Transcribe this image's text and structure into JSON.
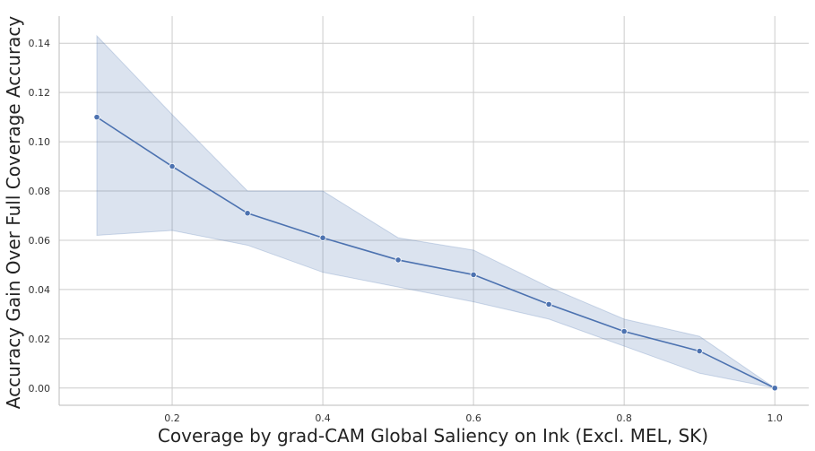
{
  "chart_data": {
    "type": "line",
    "xlabel": "Coverage by grad-CAM Global Saliency on Ink (Excl. MEL, SK)",
    "ylabel": "Accuracy Gain Over Full Coverage Accuracy",
    "xlim": [
      0.05,
      1.045
    ],
    "ylim": [
      -0.007,
      0.151
    ],
    "grid": true,
    "x_ticks": [
      0.2,
      0.4,
      0.6,
      0.8,
      1.0
    ],
    "x_tick_labels": [
      "0.2",
      "0.4",
      "0.6",
      "0.8",
      "1.0"
    ],
    "y_ticks": [
      0.0,
      0.02,
      0.04,
      0.06,
      0.08,
      0.1,
      0.12,
      0.14
    ],
    "y_tick_labels": [
      "0.00",
      "0.02",
      "0.04",
      "0.06",
      "0.08",
      "0.10",
      "0.12",
      "0.14"
    ],
    "series": [
      {
        "color": "#4c72b0",
        "band_color": "#4c72b0",
        "x": [
          0.1,
          0.2,
          0.3,
          0.4,
          0.5,
          0.6,
          0.7,
          0.8,
          0.9,
          1.0
        ],
        "y": [
          0.11,
          0.09,
          0.071,
          0.061,
          0.052,
          0.046,
          0.034,
          0.023,
          0.015,
          0.0
        ],
        "lower": [
          0.062,
          0.064,
          0.058,
          0.047,
          0.041,
          0.035,
          0.028,
          0.017,
          0.006,
          0.0
        ],
        "upper": [
          0.143,
          0.111,
          0.08,
          0.08,
          0.061,
          0.056,
          0.041,
          0.028,
          0.021,
          0.0
        ]
      }
    ]
  }
}
